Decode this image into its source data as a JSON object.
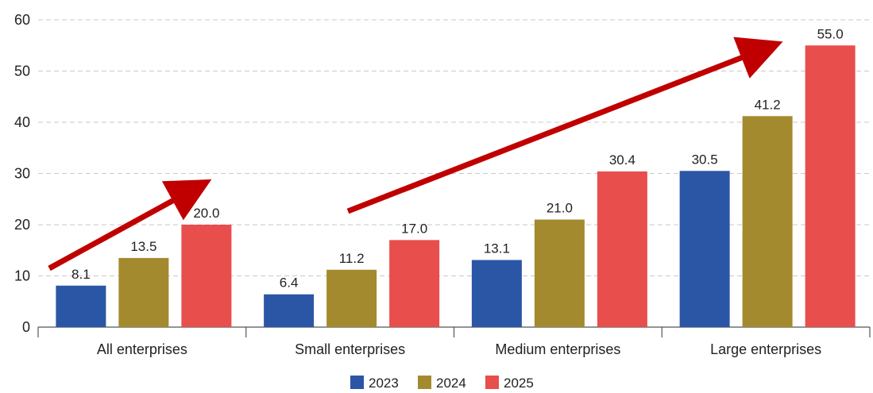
{
  "chart_data": {
    "type": "bar",
    "title": "",
    "xlabel": "",
    "ylabel": "",
    "ylim": [
      0,
      60
    ],
    "yticks": [
      0,
      10,
      20,
      30,
      40,
      50,
      60
    ],
    "grid": true,
    "legend_position": "bottom-center",
    "categories": [
      "All enterprises",
      "Small enterprises",
      "Medium enterprises",
      "Large enterprises"
    ],
    "series": [
      {
        "name": "2023",
        "color": "#2b56a5",
        "values": [
          8.1,
          6.4,
          13.1,
          30.5
        ],
        "labels": [
          "8.1",
          "6.4",
          "13.1",
          "30.5"
        ]
      },
      {
        "name": "2024",
        "color": "#a48a2e",
        "values": [
          13.5,
          11.2,
          21.0,
          41.2
        ],
        "labels": [
          "13.5",
          "11.2",
          "21.0",
          "41.2"
        ]
      },
      {
        "name": "2025",
        "color": "#e84e4c",
        "values": [
          20.0,
          17.0,
          30.4,
          55.0
        ],
        "labels": [
          "20.0",
          "17.0",
          "30.4",
          "55.0"
        ]
      }
    ],
    "annotations": [
      {
        "type": "arrow",
        "color": "#c00000",
        "description": "upward trend arrow over All enterprises"
      },
      {
        "type": "arrow",
        "color": "#c00000",
        "description": "upward trend arrow from Small enterprises to Large enterprises"
      }
    ]
  }
}
